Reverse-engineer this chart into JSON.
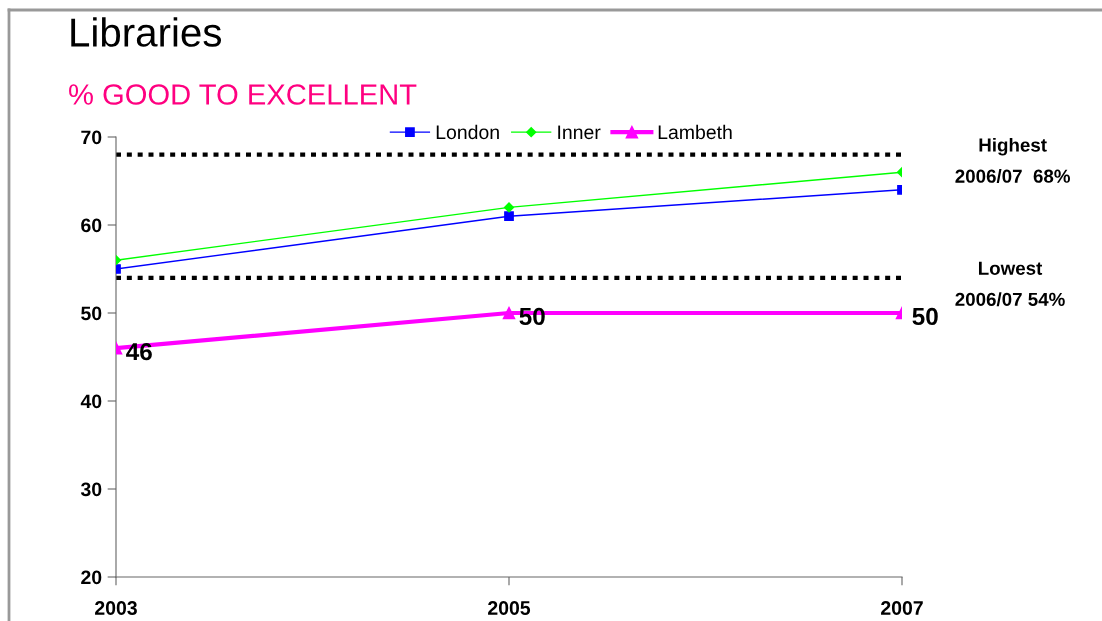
{
  "chart_data": {
    "type": "line",
    "title": "Libraries",
    "subtitle": "% GOOD TO EXCELLENT",
    "categories": [
      "2003",
      "2005",
      "2007"
    ],
    "series": [
      {
        "name": "London",
        "color": "#0000ff",
        "values": [
          55,
          61,
          64
        ],
        "marker": "square"
      },
      {
        "name": "Inner",
        "color": "#00ff00",
        "values": [
          56,
          62,
          66
        ],
        "marker": "diamond"
      },
      {
        "name": "Lambeth",
        "color": "#ff00ff",
        "values": [
          46,
          50,
          50
        ],
        "marker": "triangle",
        "data_labels": true
      }
    ],
    "ylim": [
      20,
      70
    ],
    "yticks": [
      20,
      30,
      40,
      50,
      60,
      70
    ],
    "ref_lines": [
      {
        "axis": "y",
        "value": 68,
        "label": "Highest\n2006/07  68%",
        "color": "#000000",
        "line_style": "dotted"
      },
      {
        "axis": "y",
        "value": 54,
        "label": "Lowest\n2006/07 54%",
        "color": "#000000",
        "line_style": "dotted"
      }
    ],
    "legend": "top",
    "grid": false,
    "line_style": "solid"
  }
}
